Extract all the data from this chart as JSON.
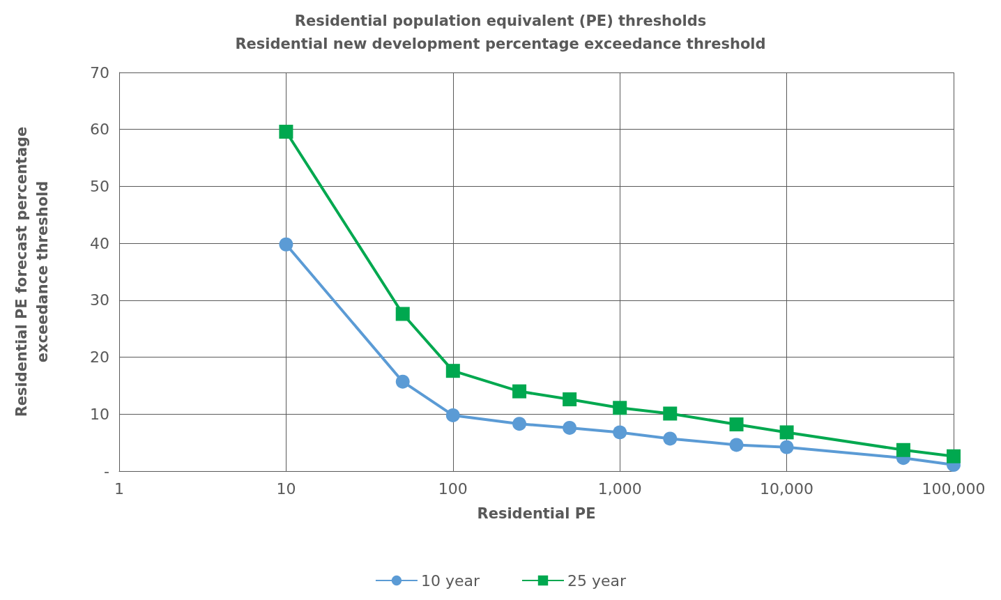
{
  "chart_data": {
    "type": "line",
    "title": "Residential population equivalent (PE) thresholds",
    "subtitle": "Residential new development percentage exceedance threshold",
    "xlabel": "Residential PE",
    "ylabel": "Residential PE forecast percentage\nexceedance threshold",
    "log": "x",
    "xlim": [
      1,
      100000
    ],
    "xticks": [
      1,
      10,
      100,
      {
        "value": 1000,
        "label": "1,000"
      },
      {
        "value": 10000,
        "label": "10,000"
      },
      {
        "value": 100000,
        "label": "100,000"
      }
    ],
    "ylim": [
      0,
      70
    ],
    "yticks": [
      {
        "value": 0,
        "label": "-"
      },
      10,
      20,
      30,
      40,
      50,
      60,
      70
    ],
    "grid": true,
    "legend": "bottom",
    "line_style": "solid",
    "x": [
      10,
      50,
      100,
      250,
      500,
      1000,
      2000,
      5000,
      10000,
      50000,
      100000
    ],
    "series": [
      {
        "name": "10 year",
        "color": "#5b9bd5",
        "marker": "circle",
        "values": [
          39.8,
          15.7,
          9.8,
          8.3,
          7.6,
          6.8,
          5.7,
          4.6,
          4.2,
          2.3,
          1.1
        ]
      },
      {
        "name": "25 year",
        "color": "#00a84f",
        "marker": "square",
        "values": [
          59.6,
          27.6,
          17.6,
          14.0,
          12.6,
          11.1,
          10.1,
          8.2,
          6.8,
          3.7,
          2.6
        ]
      }
    ]
  }
}
